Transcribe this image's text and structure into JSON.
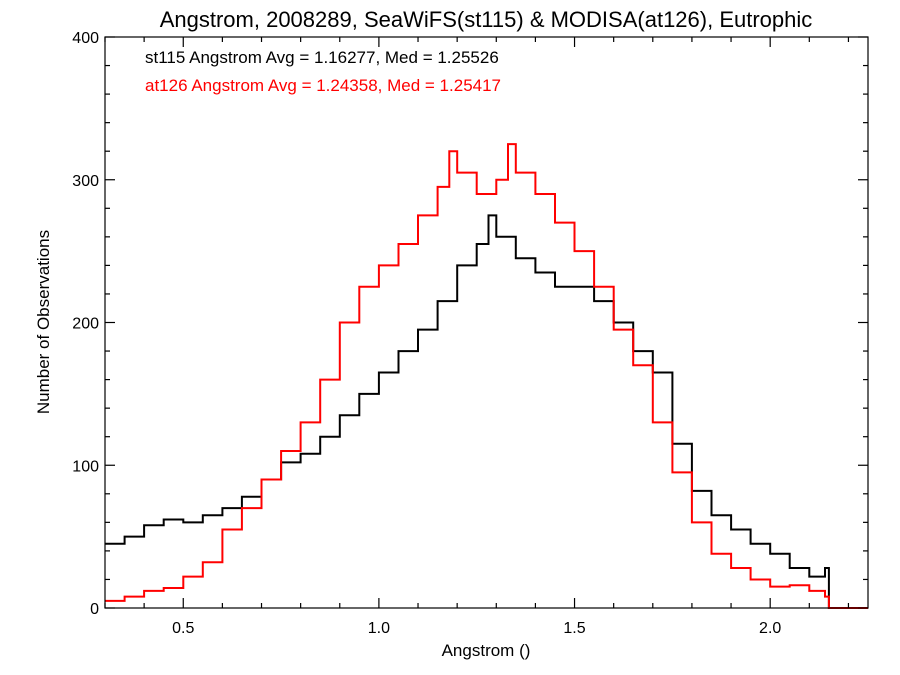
{
  "chart_data": {
    "type": "line",
    "title": "Angstrom, 2008289, SeaWiFS(st115) & MODISA(at126), Eutrophic",
    "xlabel": "Angstrom ()",
    "ylabel": "Number of Observations",
    "xlim": [
      0.3,
      2.25
    ],
    "ylim": [
      0,
      400
    ],
    "xticks": [
      0.5,
      1.0,
      1.5,
      2.0
    ],
    "xtick_labels": [
      "0.5",
      "1.0",
      "1.5",
      "2.0"
    ],
    "yticks": [
      0,
      100,
      200,
      300,
      400
    ],
    "ytick_labels": [
      "0",
      "100",
      "200",
      "300",
      "400"
    ],
    "grid": false,
    "legend_placement": "top-left",
    "series": [
      {
        "name": "st115",
        "legend_text": "st115 Angstrom Avg = 1.16277, Med = 1.25526",
        "color": "#000000",
        "x": [
          0.3,
          0.35,
          0.4,
          0.45,
          0.5,
          0.55,
          0.6,
          0.65,
          0.7,
          0.75,
          0.8,
          0.85,
          0.9,
          0.95,
          1.0,
          1.05,
          1.1,
          1.15,
          1.2,
          1.25,
          1.28,
          1.3,
          1.35,
          1.4,
          1.45,
          1.5,
          1.55,
          1.6,
          1.65,
          1.7,
          1.75,
          1.8,
          1.85,
          1.9,
          1.95,
          2.0,
          2.05,
          2.1,
          2.14,
          2.15,
          2.2,
          2.25
        ],
        "values": [
          45,
          50,
          58,
          62,
          60,
          65,
          70,
          78,
          90,
          102,
          108,
          120,
          135,
          150,
          165,
          180,
          195,
          215,
          240,
          255,
          275,
          260,
          245,
          235,
          225,
          225,
          215,
          200,
          180,
          165,
          115,
          82,
          65,
          55,
          45,
          38,
          28,
          22,
          28,
          0,
          0,
          0
        ]
      },
      {
        "name": "at126",
        "legend_text": "at126 Angstrom Avg = 1.24358, Med = 1.25417",
        "color": "#ff0000",
        "x": [
          0.3,
          0.35,
          0.4,
          0.45,
          0.5,
          0.55,
          0.6,
          0.65,
          0.7,
          0.75,
          0.8,
          0.85,
          0.9,
          0.95,
          1.0,
          1.05,
          1.1,
          1.15,
          1.18,
          1.2,
          1.25,
          1.3,
          1.33,
          1.35,
          1.4,
          1.45,
          1.5,
          1.55,
          1.6,
          1.65,
          1.7,
          1.75,
          1.8,
          1.85,
          1.9,
          1.95,
          2.0,
          2.05,
          2.1,
          2.14,
          2.15,
          2.2,
          2.25
        ],
        "values": [
          5,
          8,
          12,
          14,
          22,
          32,
          55,
          70,
          90,
          110,
          130,
          160,
          200,
          225,
          240,
          255,
          275,
          295,
          320,
          305,
          290,
          300,
          325,
          305,
          290,
          270,
          250,
          225,
          195,
          170,
          130,
          95,
          60,
          38,
          28,
          20,
          15,
          16,
          12,
          8,
          0,
          0,
          0
        ]
      }
    ]
  }
}
